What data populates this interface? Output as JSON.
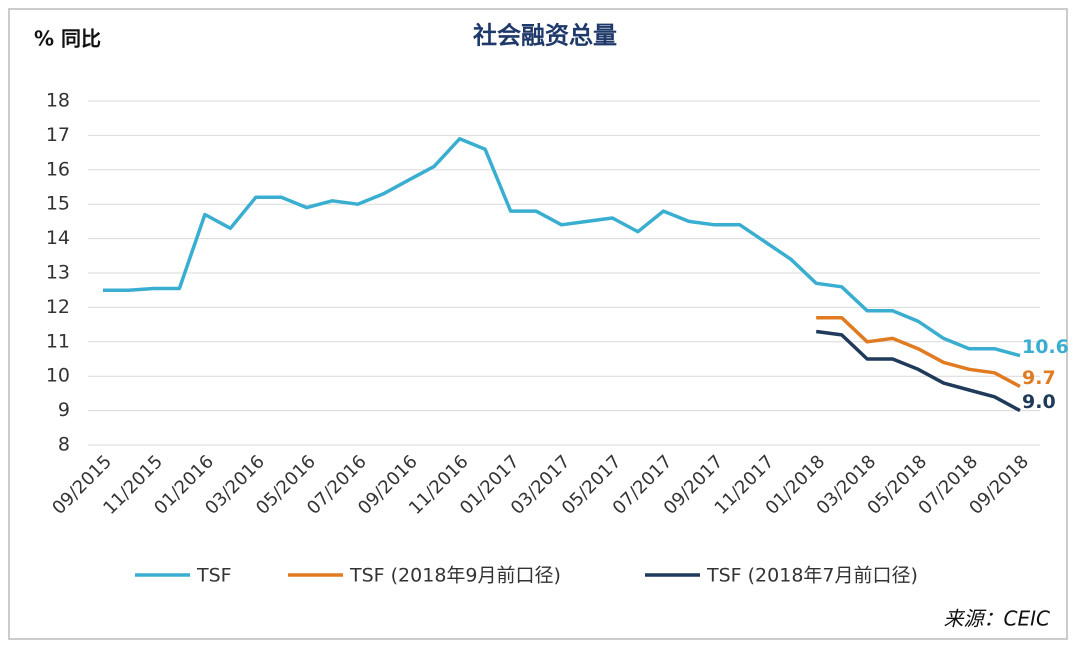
{
  "chart_data": {
    "type": "line",
    "title": "社会融资总量",
    "y_axis_label": "% 同比",
    "source": "来源：CEIC",
    "categories": [
      "09/2015",
      null,
      "11/2015",
      null,
      "01/2016",
      null,
      "03/2016",
      null,
      "05/2016",
      null,
      "07/2016",
      null,
      "09/2016",
      null,
      "11/2016",
      null,
      "01/2017",
      null,
      "03/2017",
      null,
      "05/2017",
      null,
      "07/2017",
      null,
      "09/2017",
      null,
      "11/2017",
      null,
      "01/2018",
      null,
      "03/2018",
      null,
      "05/2018",
      null,
      "07/2018",
      null,
      "09/2018"
    ],
    "series": [
      {
        "name": "TSF",
        "color": "#3aaed0",
        "values": [
          12.5,
          12.5,
          12.55,
          12.55,
          14.7,
          14.3,
          15.2,
          15.2,
          14.9,
          15.1,
          15.0,
          15.3,
          15.7,
          16.1,
          16.9,
          16.6,
          14.8,
          14.8,
          14.4,
          14.5,
          14.6,
          14.2,
          14.8,
          14.5,
          14.4,
          14.4,
          13.9,
          13.4,
          12.7,
          12.6,
          11.9,
          11.9,
          11.6,
          11.1,
          10.8,
          10.8,
          10.6
        ],
        "value_labels": [
          null,
          null,
          null,
          null,
          null,
          null,
          null,
          null,
          null,
          null,
          null,
          null,
          null,
          null,
          null,
          null,
          null,
          null,
          null,
          null,
          null,
          null,
          null,
          null,
          null,
          null,
          null,
          null,
          null,
          null,
          null,
          null,
          null,
          null,
          null,
          null,
          "10.6"
        ]
      },
      {
        "name": "TSF (2018年9月前口径)",
        "color": "#e07b22",
        "values": [
          null,
          null,
          null,
          null,
          null,
          null,
          null,
          null,
          null,
          null,
          null,
          null,
          null,
          null,
          null,
          null,
          null,
          null,
          null,
          null,
          null,
          null,
          null,
          null,
          null,
          null,
          null,
          null,
          11.7,
          11.7,
          11.0,
          11.1,
          10.8,
          10.4,
          10.2,
          10.1,
          9.7
        ],
        "value_labels": [
          null,
          null,
          null,
          null,
          null,
          null,
          null,
          null,
          null,
          null,
          null,
          null,
          null,
          null,
          null,
          null,
          null,
          null,
          null,
          null,
          null,
          null,
          null,
          null,
          null,
          null,
          null,
          null,
          null,
          null,
          null,
          null,
          null,
          null,
          null,
          null,
          "9.7"
        ]
      },
      {
        "name": "TSF (2018年7月前口径)",
        "color": "#1f3a5a",
        "values": [
          null,
          null,
          null,
          null,
          null,
          null,
          null,
          null,
          null,
          null,
          null,
          null,
          null,
          null,
          null,
          null,
          null,
          null,
          null,
          null,
          null,
          null,
          null,
          null,
          null,
          null,
          null,
          null,
          11.3,
          11.2,
          10.5,
          10.5,
          10.2,
          9.8,
          9.6,
          9.4,
          9.0
        ],
        "value_labels": [
          null,
          null,
          null,
          null,
          null,
          null,
          null,
          null,
          null,
          null,
          null,
          null,
          null,
          null,
          null,
          null,
          null,
          null,
          null,
          null,
          null,
          null,
          null,
          null,
          null,
          null,
          null,
          null,
          null,
          null,
          null,
          null,
          null,
          null,
          null,
          null,
          "9.0"
        ]
      }
    ],
    "ylim": [
      8,
      18
    ],
    "yticks": [
      8,
      9,
      10,
      11,
      12,
      13,
      14,
      15,
      16,
      17,
      18
    ],
    "grid": true,
    "legend": "bottom"
  }
}
